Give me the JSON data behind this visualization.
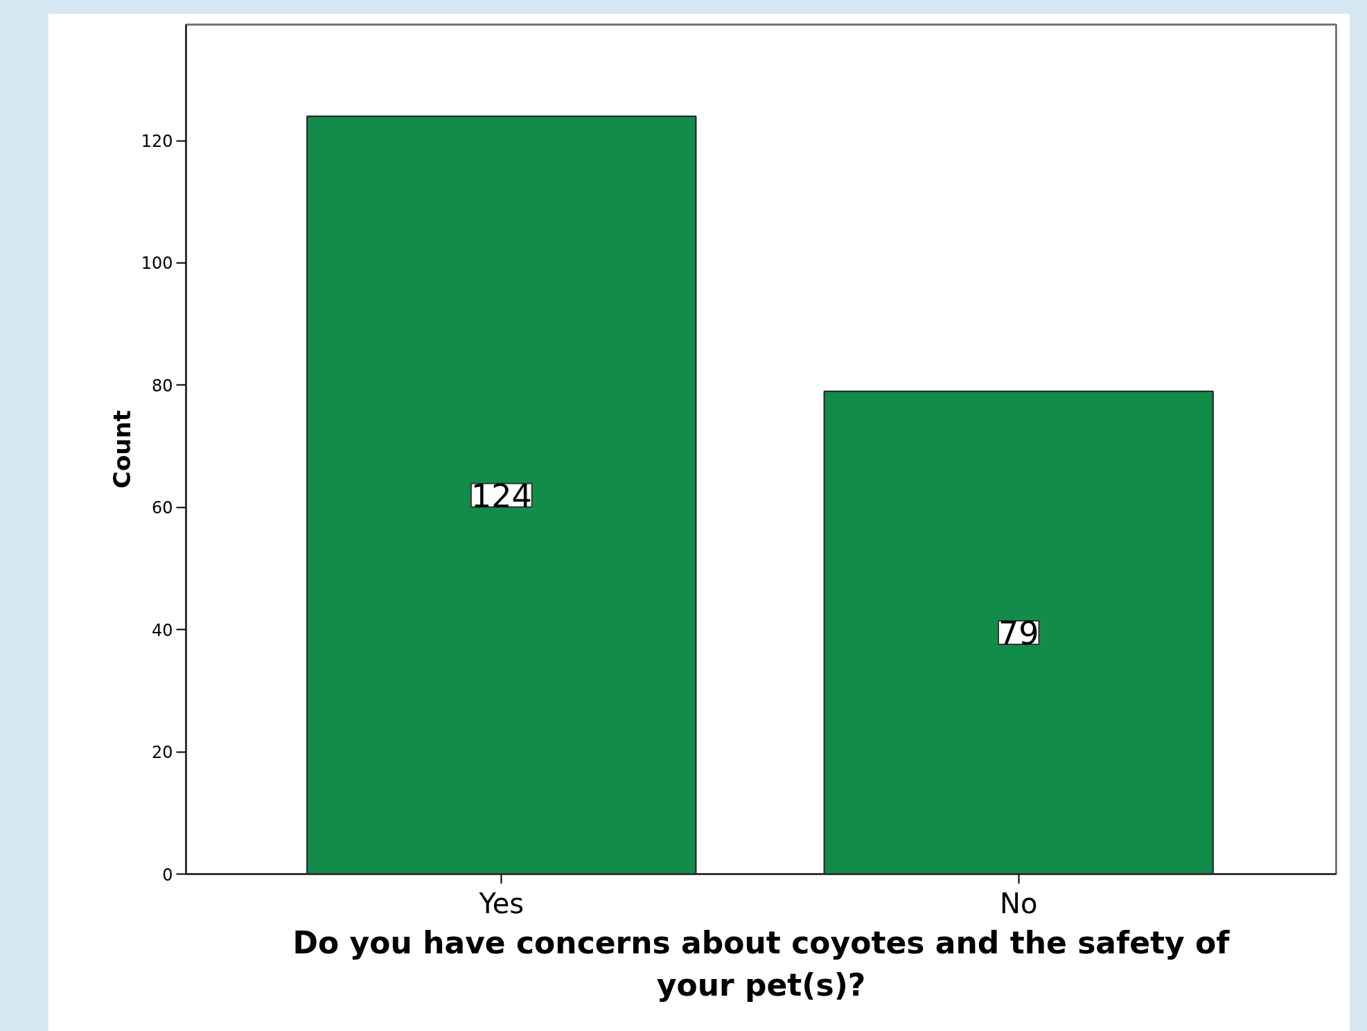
{
  "chart_data": {
    "type": "bar",
    "xlabel": "Do you have concerns about coyotes and the safety of your pet(s)?",
    "ylabel": "Count",
    "categories": [
      "Yes",
      "No"
    ],
    "values": [
      124,
      79
    ],
    "color": "#128c4a",
    "ylim": [
      0,
      139
    ],
    "yticks": [
      0,
      20,
      40,
      60,
      80,
      100,
      120
    ],
    "data_labels": true,
    "grid": false
  }
}
